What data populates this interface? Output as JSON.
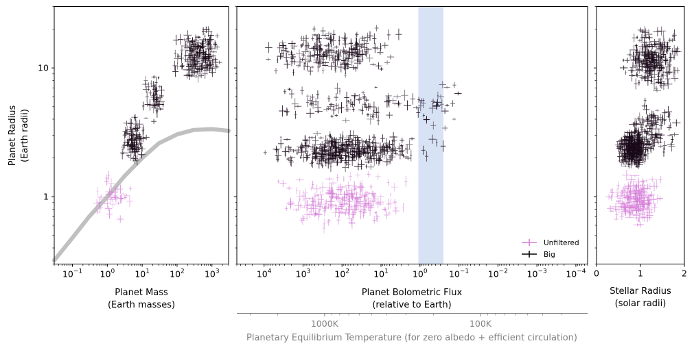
{
  "chart_data": [
    {
      "type": "scatter",
      "panel": "mass-radius",
      "xlabel": "Planet Mass",
      "xlabel_units": "(Earth masses)",
      "ylabel": "Planet Radius",
      "ylabel_units": "(Earth radii)",
      "x_scale": "log",
      "y_scale": "log",
      "xlim": [
        0.03,
        3000
      ],
      "ylim": [
        0.3,
        30
      ],
      "x_ticks": [
        {
          "value": 0.1,
          "base": "10",
          "exp": "−1"
        },
        {
          "value": 1,
          "base": "10",
          "exp": "0"
        },
        {
          "value": 10,
          "base": "10",
          "exp": "1"
        },
        {
          "value": 100,
          "base": "10",
          "exp": "2"
        },
        {
          "value": 1000,
          "base": "10",
          "exp": "3"
        }
      ],
      "y_ticks": [
        {
          "value": 1,
          "label": "1"
        },
        {
          "value": 10,
          "label": "10"
        }
      ],
      "theory_curve": {
        "color": "#c0c0c0",
        "points": [
          [
            0.03,
            0.32
          ],
          [
            0.1,
            0.48
          ],
          [
            0.3,
            0.7
          ],
          [
            1,
            1.0
          ],
          [
            3,
            1.43
          ],
          [
            10,
            2.0
          ],
          [
            30,
            2.6
          ],
          [
            100,
            3.05
          ],
          [
            300,
            3.3
          ],
          [
            1000,
            3.35
          ],
          [
            3000,
            3.25
          ]
        ]
      },
      "series": [
        {
          "name": "Unfiltered",
          "color": "#d67ed9",
          "cloud": [
            {
              "x_range": [
                0.3,
                8
              ],
              "y_range": [
                0.65,
                1.6
              ],
              "count": 40
            }
          ]
        },
        {
          "name": "Big",
          "color": "#1a0a1a",
          "cloud": [
            {
              "x_range": [
                2,
                15
              ],
              "y_range": [
                1.6,
                4.5
              ],
              "count": 110
            },
            {
              "x_range": [
                8,
                60
              ],
              "y_range": [
                3.5,
                10
              ],
              "count": 50
            },
            {
              "x_range": [
                60,
                2500
              ],
              "y_range": [
                7,
                22
              ],
              "count": 200
            }
          ]
        }
      ]
    },
    {
      "type": "scatter",
      "panel": "flux-radius",
      "xlabel": "Planet Bolometric Flux",
      "xlabel_units": "(relative to Earth)",
      "secondary_xlabel": "Planetary Equilibrium Temperature (for zero albedo + efficient circulation)",
      "secondary_ticks": [
        {
          "label": "1000K",
          "flux": 280
        },
        {
          "label": "100K",
          "flux": 0.028
        }
      ],
      "x_scale": "log",
      "x_inverted": true,
      "y_scale": "log",
      "xlim": [
        50000,
        5e-05
      ],
      "ylim": [
        0.3,
        30
      ],
      "x_ticks": [
        {
          "value": 10000,
          "base": "10",
          "exp": "4"
        },
        {
          "value": 1000,
          "base": "10",
          "exp": "3"
        },
        {
          "value": 100,
          "base": "10",
          "exp": "2"
        },
        {
          "value": 10,
          "base": "10",
          "exp": "1"
        },
        {
          "value": 1,
          "base": "10",
          "exp": "0"
        },
        {
          "value": 0.1,
          "base": "10",
          "exp": "−1"
        },
        {
          "value": 0.01,
          "base": "10",
          "exp": "−2"
        },
        {
          "value": 0.001,
          "base": "10",
          "exp": "−3"
        },
        {
          "value": 0.0001,
          "base": "10",
          "exp": "−4"
        }
      ],
      "habitable_zone": {
        "flux_range": [
          1.1,
          0.25
        ],
        "color": "#c9d8f2"
      },
      "legend": {
        "position": "lower-right",
        "entries": [
          {
            "label": "Unfiltered",
            "color": "#d67ed9"
          },
          {
            "label": "Big",
            "color": "#000000"
          }
        ]
      },
      "series": [
        {
          "name": "Unfiltered",
          "color": "#d67ed9",
          "cloud": [
            {
              "x_range": [
                8000,
                1.5
              ],
              "y_range": [
                0.55,
                1.6
              ],
              "count": 240
            }
          ]
        },
        {
          "name": "Big",
          "color": "#1a0a1a",
          "cloud": [
            {
              "x_range": [
                15000,
                0.5
              ],
              "y_range": [
                1.6,
                3.3
              ],
              "count": 380
            },
            {
              "x_range": [
                15000,
                2
              ],
              "y_range": [
                8,
                22
              ],
              "count": 220
            },
            {
              "x_range": [
                12000,
                0.1
              ],
              "y_range": [
                3.3,
                8
              ],
              "count": 90
            },
            {
              "x_range": [
                3,
                0.05
              ],
              "y_range": [
                1.5,
                12
              ],
              "count": 25
            }
          ]
        }
      ]
    },
    {
      "type": "scatter",
      "panel": "stellar-radius",
      "xlabel": "Stellar Radius",
      "xlabel_units": "(solar radii)",
      "x_scale": "linear",
      "y_scale": "log",
      "xlim": [
        0,
        2
      ],
      "ylim": [
        0.3,
        30
      ],
      "x_ticks": [
        {
          "value": 0,
          "label": "0"
        },
        {
          "value": 1,
          "label": "1"
        },
        {
          "value": 2,
          "label": "2"
        }
      ],
      "series": [
        {
          "name": "Unfiltered",
          "color": "#d67ed9",
          "cloud": [
            {
              "x_range": [
                0.15,
                1.6
              ],
              "y_range": [
                0.55,
                1.6
              ],
              "count": 220
            }
          ]
        },
        {
          "name": "Big",
          "color": "#1a0a1a",
          "cloud": [
            {
              "x_range": [
                0.45,
                1.2
              ],
              "y_range": [
                1.6,
                3.5
              ],
              "count": 300
            },
            {
              "x_range": [
                0.5,
                2
              ],
              "y_range": [
                6,
                22
              ],
              "count": 260
            },
            {
              "x_range": [
                0.4,
                2
              ],
              "y_range": [
                1.8,
                6
              ],
              "count": 120
            }
          ]
        }
      ]
    }
  ]
}
